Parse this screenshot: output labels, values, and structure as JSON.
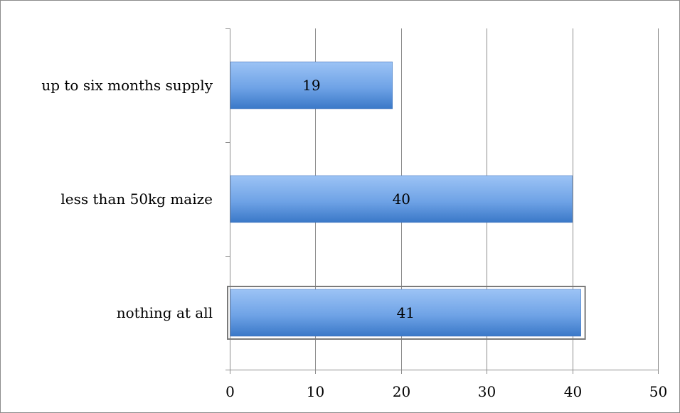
{
  "chart_data": {
    "type": "bar",
    "orientation": "horizontal",
    "categories": [
      "up to six months supply",
      "less than 50kg maize",
      "nothing at all"
    ],
    "values": [
      19,
      40,
      41
    ],
    "data_labels": [
      "19",
      "40",
      "41"
    ],
    "title": "",
    "xlabel": "",
    "ylabel": "",
    "xlim": [
      0,
      50
    ],
    "x_ticks": [
      0,
      10,
      20,
      30,
      40,
      50
    ],
    "x_tick_labels": [
      "0",
      "10",
      "20",
      "30",
      "40",
      "50"
    ],
    "grid": true,
    "legend": "none",
    "bar_color_top": "#9cc3f5",
    "bar_color_bottom": "#3a78c8",
    "gridline_color": "#8c8c8c",
    "selected_category": "nothing at all"
  }
}
